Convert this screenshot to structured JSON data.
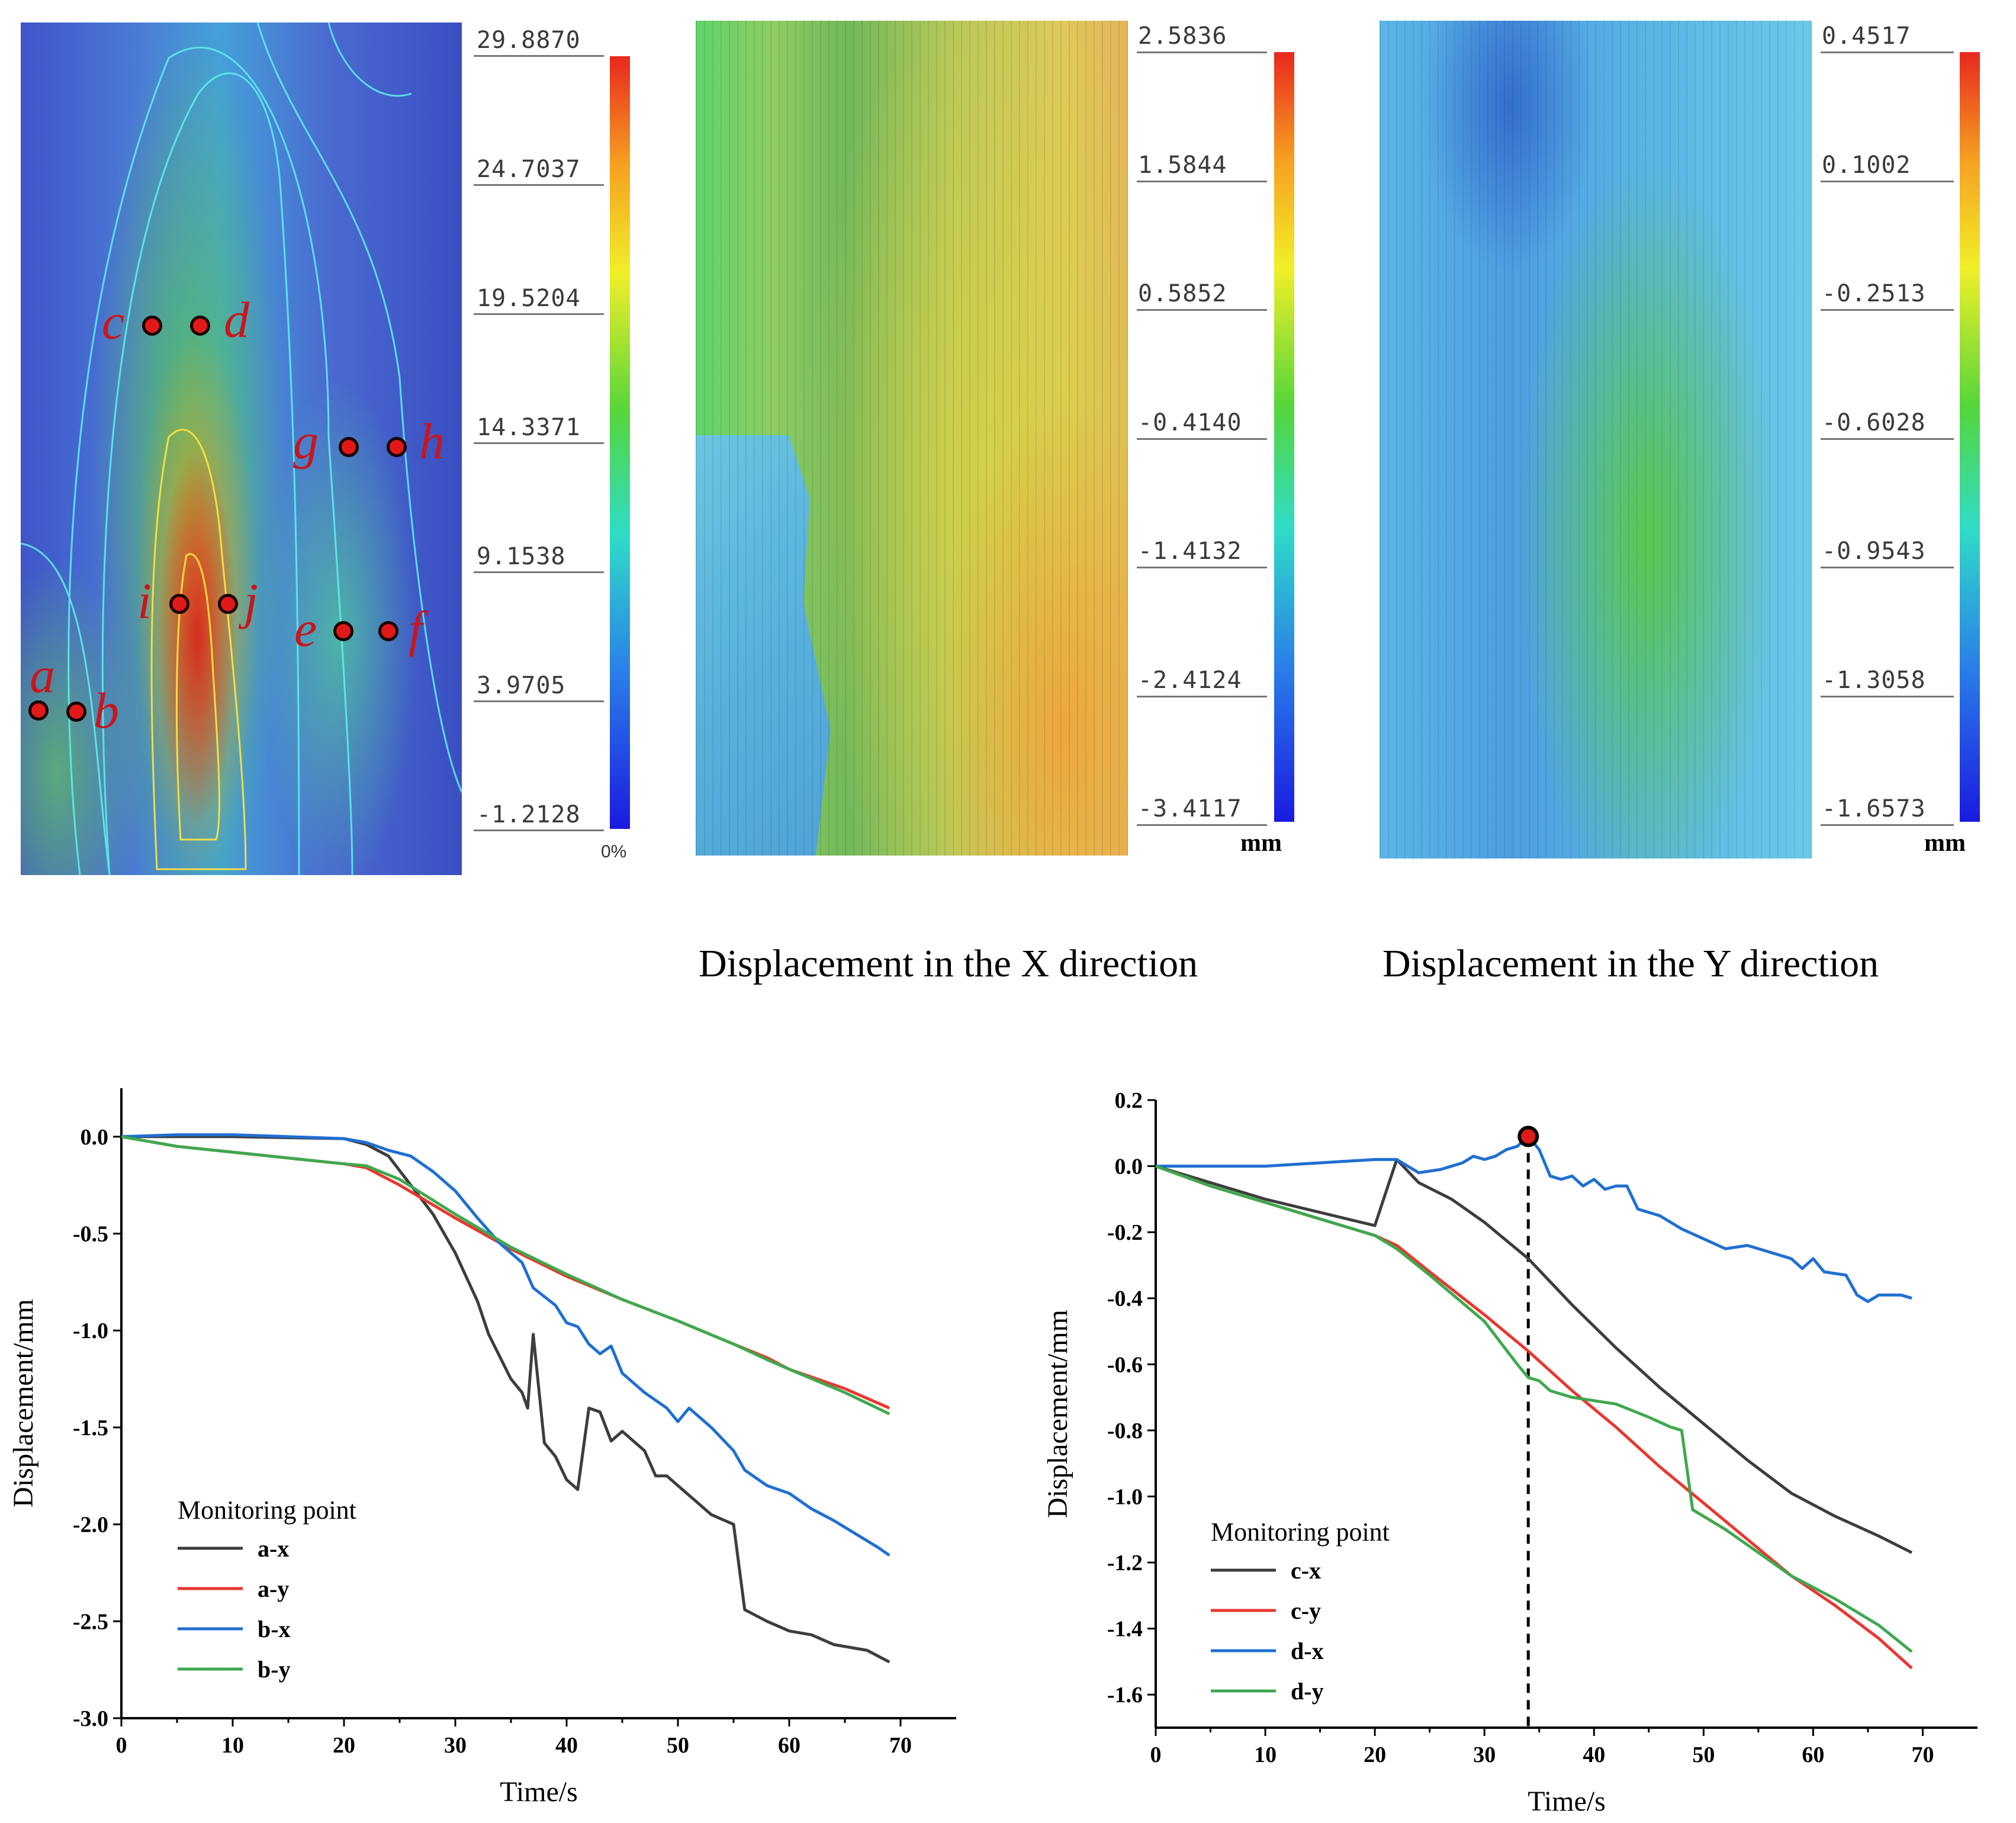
{
  "strain_map": {
    "scale_values": [
      "29.8870",
      "24.7037",
      "19.5204",
      "14.3371",
      "9.1538",
      "3.9705",
      "-1.2128"
    ],
    "bottom_label": "0%",
    "points": [
      "a",
      "b",
      "c",
      "d",
      "e",
      "f",
      "g",
      "h",
      "i",
      "j"
    ]
  },
  "x_displacement_map": {
    "scale_values": [
      "2.5836",
      "1.5844",
      "0.5852",
      "-0.4140",
      "-1.4132",
      "-2.4124",
      "-3.4117"
    ],
    "unit": "mm",
    "caption": "Displacement in the X direction"
  },
  "y_displacement_map": {
    "scale_values": [
      "0.4517",
      "0.1002",
      "-0.2513",
      "-0.6028",
      "-0.9543",
      "-1.3058",
      "-1.6573"
    ],
    "unit": "mm",
    "caption": "Displacement in the Y direction"
  },
  "colors": {
    "ax": "#3d3d3d",
    "ay": "#e8372f",
    "bx": "#1f6fd1",
    "by": "#3fa84f"
  },
  "chart_data": [
    {
      "type": "line",
      "xlabel": "Time/s",
      "ylabel": "Displacement/mm",
      "xlim": [
        0,
        75
      ],
      "ylim": [
        -3.0,
        0.25
      ],
      "xticks": [
        0,
        10,
        20,
        30,
        40,
        50,
        60,
        70
      ],
      "yticks": [
        0.0,
        -0.5,
        -1.0,
        -1.5,
        -2.0,
        -2.5,
        -3.0
      ],
      "ytick_labels": [
        "0.0",
        "-0.5",
        "-1.0",
        "-1.5",
        "-2.0",
        "-2.5",
        "-3.0"
      ],
      "legend_title": "Monitoring point",
      "legend_position": "bottom-left",
      "series": [
        {
          "name": "a-x",
          "color": "#3d3d3d",
          "points": [
            [
              0,
              0
            ],
            [
              10,
              0.0
            ],
            [
              20,
              -0.01
            ],
            [
              22,
              -0.04
            ],
            [
              24,
              -0.1
            ],
            [
              26,
              -0.25
            ],
            [
              28,
              -0.4
            ],
            [
              30,
              -0.6
            ],
            [
              32,
              -0.85
            ],
            [
              33,
              -1.02
            ],
            [
              35,
              -1.25
            ],
            [
              36,
              -1.32
            ],
            [
              36.5,
              -1.4
            ],
            [
              37,
              -1.02
            ],
            [
              38,
              -1.58
            ],
            [
              39,
              -1.65
            ],
            [
              40,
              -1.77
            ],
            [
              41,
              -1.82
            ],
            [
              42,
              -1.4
            ],
            [
              43,
              -1.42
            ],
            [
              44,
              -1.57
            ],
            [
              45,
              -1.52
            ],
            [
              47,
              -1.62
            ],
            [
              48,
              -1.75
            ],
            [
              49,
              -1.75
            ],
            [
              51,
              -1.85
            ],
            [
              53,
              -1.95
            ],
            [
              55,
              -2.0
            ],
            [
              56,
              -2.44
            ],
            [
              58,
              -2.5
            ],
            [
              60,
              -2.55
            ],
            [
              62,
              -2.57
            ],
            [
              64,
              -2.62
            ],
            [
              67,
              -2.65
            ],
            [
              69,
              -2.71
            ]
          ]
        },
        {
          "name": "a-y",
          "color": "#e8372f",
          "points": [
            [
              0,
              0
            ],
            [
              5,
              -0.05
            ],
            [
              10,
              -0.08
            ],
            [
              15,
              -0.11
            ],
            [
              20,
              -0.14
            ],
            [
              22,
              -0.16
            ],
            [
              25,
              -0.25
            ],
            [
              30,
              -0.42
            ],
            [
              35,
              -0.58
            ],
            [
              40,
              -0.72
            ],
            [
              45,
              -0.84
            ],
            [
              50,
              -0.95
            ],
            [
              55,
              -1.07
            ],
            [
              58,
              -1.14
            ],
            [
              60,
              -1.2
            ],
            [
              65,
              -1.3
            ],
            [
              69,
              -1.4
            ]
          ]
        },
        {
          "name": "b-x",
          "color": "#1f6fd1",
          "points": [
            [
              0,
              0
            ],
            [
              5,
              0.01
            ],
            [
              10,
              0.01
            ],
            [
              15,
              0.0
            ],
            [
              20,
              -0.01
            ],
            [
              22,
              -0.03
            ],
            [
              24,
              -0.07
            ],
            [
              26,
              -0.1
            ],
            [
              28,
              -0.18
            ],
            [
              30,
              -0.28
            ],
            [
              32,
              -0.42
            ],
            [
              34,
              -0.55
            ],
            [
              36,
              -0.65
            ],
            [
              37,
              -0.78
            ],
            [
              39,
              -0.87
            ],
            [
              40,
              -0.96
            ],
            [
              41,
              -0.98
            ],
            [
              42,
              -1.07
            ],
            [
              43,
              -1.12
            ],
            [
              44,
              -1.08
            ],
            [
              45,
              -1.22
            ],
            [
              47,
              -1.32
            ],
            [
              49,
              -1.4
            ],
            [
              50,
              -1.47
            ],
            [
              51,
              -1.4
            ],
            [
              53,
              -1.5
            ],
            [
              55,
              -1.62
            ],
            [
              56,
              -1.72
            ],
            [
              58,
              -1.8
            ],
            [
              60,
              -1.84
            ],
            [
              62,
              -1.92
            ],
            [
              64,
              -1.98
            ],
            [
              66,
              -2.05
            ],
            [
              68,
              -2.12
            ],
            [
              69,
              -2.16
            ]
          ]
        },
        {
          "name": "b-y",
          "color": "#3fa84f",
          "points": [
            [
              0,
              0
            ],
            [
              5,
              -0.05
            ],
            [
              10,
              -0.08
            ],
            [
              15,
              -0.11
            ],
            [
              20,
              -0.14
            ],
            [
              22,
              -0.15
            ],
            [
              25,
              -0.22
            ],
            [
              30,
              -0.4
            ],
            [
              35,
              -0.57
            ],
            [
              40,
              -0.71
            ],
            [
              45,
              -0.84
            ],
            [
              50,
              -0.95
            ],
            [
              55,
              -1.07
            ],
            [
              58,
              -1.15
            ],
            [
              60,
              -1.2
            ],
            [
              65,
              -1.32
            ],
            [
              69,
              -1.43
            ]
          ]
        }
      ]
    },
    {
      "type": "line",
      "xlabel": "Time/s",
      "ylabel": "Displacement/mm",
      "xlim": [
        0,
        75
      ],
      "ylim": [
        -1.7,
        0.2
      ],
      "xticks": [
        0,
        10,
        20,
        30,
        40,
        50,
        60,
        70
      ],
      "yticks": [
        0.2,
        0.0,
        -0.2,
        -0.4,
        -0.6,
        -0.8,
        -1.0,
        -1.2,
        -1.4,
        -1.6
      ],
      "ytick_labels": [
        "0.2",
        "0.0",
        "-0.2",
        "-0.4",
        "-0.6",
        "-0.8",
        "-1.0",
        "-1.2",
        "-1.4",
        "-1.6"
      ],
      "legend_title": "Monitoring point",
      "legend_position": "bottom-left",
      "marker": {
        "x": 34,
        "y": 0.09
      },
      "vline_x": 34,
      "series": [
        {
          "name": "c-x",
          "color": "#3d3d3d",
          "points": [
            [
              0,
              0
            ],
            [
              10,
              -0.1
            ],
            [
              20,
              -0.18
            ],
            [
              22,
              0.02
            ],
            [
              24,
              -0.05
            ],
            [
              27,
              -0.1
            ],
            [
              30,
              -0.17
            ],
            [
              34,
              -0.28
            ],
            [
              38,
              -0.42
            ],
            [
              42,
              -0.55
            ],
            [
              46,
              -0.67
            ],
            [
              50,
              -0.78
            ],
            [
              54,
              -0.89
            ],
            [
              58,
              -0.99
            ],
            [
              62,
              -1.06
            ],
            [
              66,
              -1.12
            ],
            [
              69,
              -1.17
            ]
          ]
        },
        {
          "name": "c-y",
          "color": "#e8372f",
          "points": [
            [
              0,
              0
            ],
            [
              5,
              -0.06
            ],
            [
              10,
              -0.11
            ],
            [
              15,
              -0.16
            ],
            [
              20,
              -0.21
            ],
            [
              22,
              -0.24
            ],
            [
              25,
              -0.32
            ],
            [
              30,
              -0.45
            ],
            [
              34,
              -0.56
            ],
            [
              38,
              -0.68
            ],
            [
              42,
              -0.79
            ],
            [
              46,
              -0.91
            ],
            [
              50,
              -1.02
            ],
            [
              54,
              -1.13
            ],
            [
              58,
              -1.24
            ],
            [
              62,
              -1.33
            ],
            [
              66,
              -1.43
            ],
            [
              69,
              -1.52
            ]
          ]
        },
        {
          "name": "d-x",
          "color": "#1f6fd1",
          "points": [
            [
              0,
              0
            ],
            [
              5,
              0.0
            ],
            [
              10,
              0.0
            ],
            [
              15,
              0.01
            ],
            [
              20,
              0.02
            ],
            [
              22,
              0.02
            ],
            [
              23,
              0.0
            ],
            [
              24,
              -0.02
            ],
            [
              26,
              -0.01
            ],
            [
              28,
              0.01
            ],
            [
              29,
              0.03
            ],
            [
              30,
              0.02
            ],
            [
              31,
              0.03
            ],
            [
              32,
              0.05
            ],
            [
              33,
              0.06
            ],
            [
              34,
              0.09
            ],
            [
              35,
              0.05
            ],
            [
              36,
              -0.03
            ],
            [
              37,
              -0.04
            ],
            [
              38,
              -0.03
            ],
            [
              39,
              -0.06
            ],
            [
              40,
              -0.04
            ],
            [
              41,
              -0.07
            ],
            [
              42,
              -0.06
            ],
            [
              43,
              -0.06
            ],
            [
              44,
              -0.13
            ],
            [
              46,
              -0.15
            ],
            [
              48,
              -0.19
            ],
            [
              50,
              -0.22
            ],
            [
              52,
              -0.25
            ],
            [
              54,
              -0.24
            ],
            [
              56,
              -0.26
            ],
            [
              58,
              -0.28
            ],
            [
              59,
              -0.31
            ],
            [
              60,
              -0.28
            ],
            [
              61,
              -0.32
            ],
            [
              63,
              -0.33
            ],
            [
              64,
              -0.39
            ],
            [
              65,
              -0.41
            ],
            [
              66,
              -0.39
            ],
            [
              68,
              -0.39
            ],
            [
              69,
              -0.4
            ]
          ]
        },
        {
          "name": "d-y",
          "color": "#3fa84f",
          "points": [
            [
              0,
              0
            ],
            [
              5,
              -0.06
            ],
            [
              10,
              -0.11
            ],
            [
              15,
              -0.16
            ],
            [
              20,
              -0.21
            ],
            [
              22,
              -0.25
            ],
            [
              25,
              -0.33
            ],
            [
              30,
              -0.47
            ],
            [
              33,
              -0.6
            ],
            [
              34,
              -0.64
            ],
            [
              35,
              -0.65
            ],
            [
              36,
              -0.68
            ],
            [
              38,
              -0.7
            ],
            [
              42,
              -0.72
            ],
            [
              45,
              -0.76
            ],
            [
              47,
              -0.79
            ],
            [
              48,
              -0.8
            ],
            [
              49,
              -1.04
            ],
            [
              52,
              -1.1
            ],
            [
              55,
              -1.17
            ],
            [
              58,
              -1.24
            ],
            [
              62,
              -1.31
            ],
            [
              66,
              -1.39
            ],
            [
              69,
              -1.47
            ]
          ]
        }
      ]
    }
  ]
}
